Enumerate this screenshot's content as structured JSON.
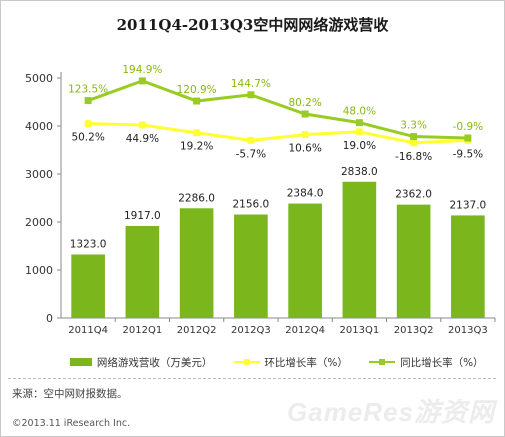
{
  "title": "2011Q4-2013Q3空中网网络游戏营收",
  "source": "来源：空中网财报数据。",
  "copyright": "©2013.11 iResearch Inc.",
  "watermark": "GameRes游资网",
  "colors": {
    "bar": "#7ab61c",
    "qoq_line": "#ffff33",
    "yoy_line": "#99cc22",
    "axis_text": "#333333",
    "yoy_label": "#88b814"
  },
  "chart_data": {
    "type": "bar",
    "categories": [
      "2011Q4",
      "2012Q1",
      "2012Q2",
      "2012Q3",
      "2012Q4",
      "2013Q1",
      "2013Q2",
      "2013Q3"
    ],
    "ylim": [
      0,
      5000
    ],
    "yticks": [
      0,
      1000,
      2000,
      3000,
      4000,
      5000
    ],
    "grid": false,
    "legend_position": "bottom",
    "series": [
      {
        "name": "网络游戏营收（万美元）",
        "kind": "bar",
        "values": [
          1323.0,
          1917.0,
          2286.0,
          2156.0,
          2384.0,
          2838.0,
          2362.0,
          2137.0
        ],
        "labels": [
          "1323.0",
          "1917.0",
          "2286.0",
          "2156.0",
          "2384.0",
          "2838.0",
          "2362.0",
          "2137.0"
        ]
      },
      {
        "name": "环比增长率（%）",
        "kind": "line",
        "values_pct": [
          50.2,
          44.9,
          19.2,
          -5.7,
          10.6,
          19.0,
          -16.8,
          -9.5
        ],
        "plotted_y": [
          4050,
          4020,
          3860,
          3700,
          3820,
          3880,
          3650,
          3700
        ],
        "labels": [
          "50.2%",
          "44.9%",
          "19.2%",
          "-5.7%",
          "10.6%",
          "19.0%",
          "-16.8%",
          "-9.5%"
        ]
      },
      {
        "name": "同比增长率（%）",
        "kind": "line",
        "values_pct": [
          123.5,
          194.9,
          120.9,
          144.7,
          80.2,
          48.0,
          3.3,
          -0.9
        ],
        "plotted_y": [
          4530,
          4940,
          4520,
          4650,
          4250,
          4070,
          3780,
          3750
        ],
        "labels": [
          "123.5%",
          "194.9%",
          "120.9%",
          "144.7%",
          "80.2%",
          "48.0%",
          "3.3%",
          "-0.9%"
        ]
      }
    ]
  }
}
